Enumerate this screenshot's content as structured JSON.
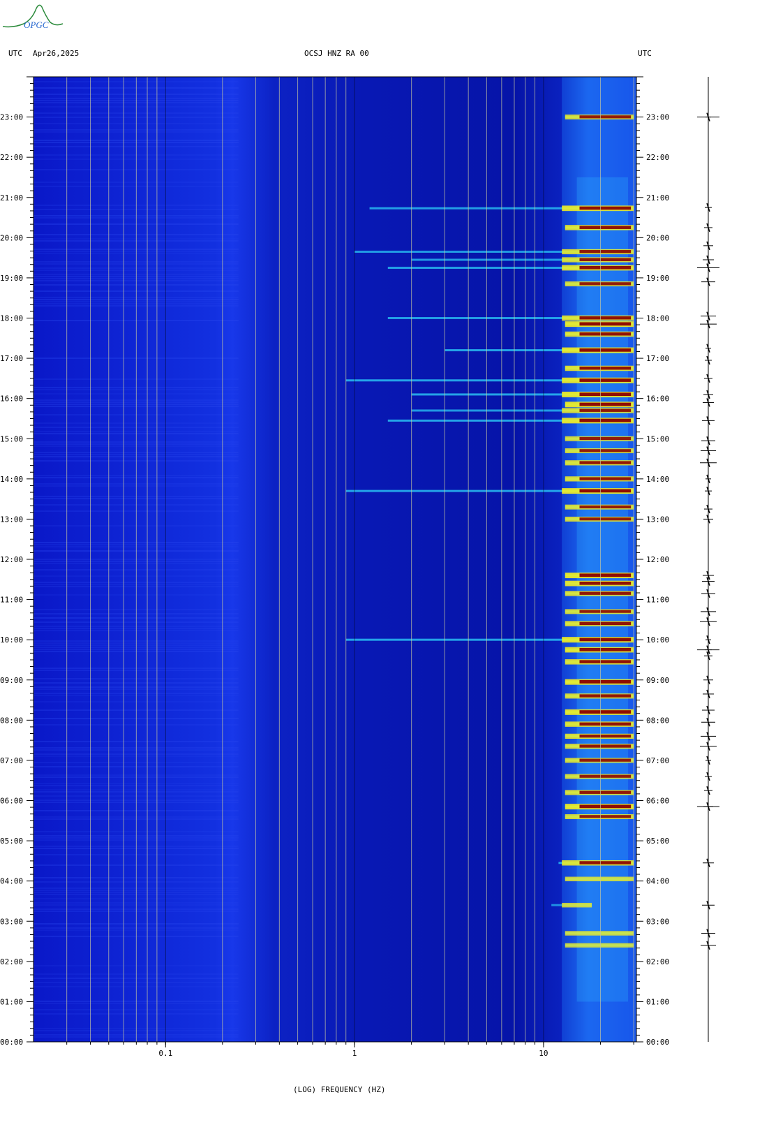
{
  "logo": {
    "text": "OPGC"
  },
  "header": {
    "left_tz": "UTC",
    "date": "Apr26,2025",
    "station": "OCSJ HNZ RA 00",
    "right_tz": "UTC"
  },
  "colors": {
    "background_blue": "#0a14b8",
    "deep_blue": "#0012a0",
    "cyan": "#30e0ff",
    "yellow": "#f4f020",
    "dark_red": "#8a0000",
    "gridline": "#c8c8a0"
  },
  "chart_data": {
    "type": "heatmap",
    "title": "OCSJ HNZ RA 00",
    "xlabel": "(LOG) FREQUENCY (HZ)",
    "ylabel": "UTC",
    "x_scale": "log",
    "xlim": [
      0.02,
      31
    ],
    "x_ticks": [
      {
        "value": 0.1,
        "label": "0.1"
      },
      {
        "value": 1,
        "label": "1"
      },
      {
        "value": 10,
        "label": "10"
      }
    ],
    "x_gridlines": [
      0.03,
      0.04,
      0.05,
      0.06,
      0.07,
      0.08,
      0.09,
      0.1,
      0.2,
      0.3,
      0.4,
      0.5,
      0.6,
      0.7,
      0.8,
      0.9,
      1,
      2,
      3,
      4,
      5,
      6,
      7,
      8,
      9,
      10,
      20,
      30
    ],
    "ylim_hours": [
      0,
      24
    ],
    "y_ticks": [
      {
        "value": 23,
        "label": "23:00"
      },
      {
        "value": 22,
        "label": "22:00"
      },
      {
        "value": 21,
        "label": "21:00"
      },
      {
        "value": 20,
        "label": "20:00"
      },
      {
        "value": 19,
        "label": "19:00"
      },
      {
        "value": 18,
        "label": "18:00"
      },
      {
        "value": 17,
        "label": "17:00"
      },
      {
        "value": 16,
        "label": "16:00"
      },
      {
        "value": 15,
        "label": "15:00"
      },
      {
        "value": 14,
        "label": "14:00"
      },
      {
        "value": 13,
        "label": "13:00"
      },
      {
        "value": 12,
        "label": "12:00"
      },
      {
        "value": 11,
        "label": "11:00"
      },
      {
        "value": 10,
        "label": "10:00"
      },
      {
        "value": 9,
        "label": "09:00"
      },
      {
        "value": 8,
        "label": "08:00"
      },
      {
        "value": 7,
        "label": "07:00"
      },
      {
        "value": 6,
        "label": "06:00"
      },
      {
        "value": 5,
        "label": "05:00"
      },
      {
        "value": 4,
        "label": "04:00"
      },
      {
        "value": 3,
        "label": "03:00"
      },
      {
        "value": 2,
        "label": "02:00"
      },
      {
        "value": 1,
        "label": "01:00"
      },
      {
        "value": 0,
        "label": "00:00"
      }
    ],
    "grid": true,
    "events": [
      {
        "time_h": 23.0,
        "f_min": 13,
        "f_max": 30,
        "intensity": 0.8
      },
      {
        "time_h": 20.73,
        "f_min": 1.2,
        "f_max": 30,
        "intensity": 0.95
      },
      {
        "time_h": 20.25,
        "f_min": 13,
        "f_max": 30,
        "intensity": 0.9
      },
      {
        "time_h": 19.65,
        "f_min": 1.0,
        "f_max": 30,
        "intensity": 0.85
      },
      {
        "time_h": 19.45,
        "f_min": 2.0,
        "f_max": 30,
        "intensity": 0.85
      },
      {
        "time_h": 19.25,
        "f_min": 1.5,
        "f_max": 30,
        "intensity": 0.95
      },
      {
        "time_h": 18.85,
        "f_min": 13,
        "f_max": 30,
        "intensity": 0.8
      },
      {
        "time_h": 18.0,
        "f_min": 1.5,
        "f_max": 30,
        "intensity": 0.9
      },
      {
        "time_h": 17.85,
        "f_min": 13,
        "f_max": 30,
        "intensity": 1.0
      },
      {
        "time_h": 17.6,
        "f_min": 13,
        "f_max": 30,
        "intensity": 0.9
      },
      {
        "time_h": 17.2,
        "f_min": 3.0,
        "f_max": 30,
        "intensity": 1.0
      },
      {
        "time_h": 16.75,
        "f_min": 13,
        "f_max": 30,
        "intensity": 0.9
      },
      {
        "time_h": 16.45,
        "f_min": 0.9,
        "f_max": 30,
        "intensity": 1.0
      },
      {
        "time_h": 16.1,
        "f_min": 2.0,
        "f_max": 30,
        "intensity": 1.0
      },
      {
        "time_h": 15.85,
        "f_min": 13,
        "f_max": 30,
        "intensity": 1.0
      },
      {
        "time_h": 15.7,
        "f_min": 2.0,
        "f_max": 30,
        "intensity": 0.85
      },
      {
        "time_h": 15.45,
        "f_min": 1.5,
        "f_max": 30,
        "intensity": 1.0
      },
      {
        "time_h": 15.0,
        "f_min": 13,
        "f_max": 30,
        "intensity": 0.8
      },
      {
        "time_h": 14.7,
        "f_min": 13,
        "f_max": 30,
        "intensity": 0.8
      },
      {
        "time_h": 14.4,
        "f_min": 13,
        "f_max": 30,
        "intensity": 0.85
      },
      {
        "time_h": 14.0,
        "f_min": 13,
        "f_max": 30,
        "intensity": 0.85
      },
      {
        "time_h": 13.7,
        "f_min": 0.9,
        "f_max": 30,
        "intensity": 1.0
      },
      {
        "time_h": 13.3,
        "f_min": 13,
        "f_max": 30,
        "intensity": 0.8
      },
      {
        "time_h": 13.0,
        "f_min": 13,
        "f_max": 30,
        "intensity": 0.8
      },
      {
        "time_h": 11.6,
        "f_min": 13,
        "f_max": 30,
        "intensity": 1.0
      },
      {
        "time_h": 11.4,
        "f_min": 13,
        "f_max": 30,
        "intensity": 0.95
      },
      {
        "time_h": 11.15,
        "f_min": 13,
        "f_max": 30,
        "intensity": 0.85
      },
      {
        "time_h": 10.7,
        "f_min": 13,
        "f_max": 30,
        "intensity": 0.8
      },
      {
        "time_h": 10.4,
        "f_min": 13,
        "f_max": 30,
        "intensity": 0.9
      },
      {
        "time_h": 10.0,
        "f_min": 0.9,
        "f_max": 30,
        "intensity": 1.0
      },
      {
        "time_h": 9.75,
        "f_min": 13,
        "f_max": 30,
        "intensity": 0.95
      },
      {
        "time_h": 9.45,
        "f_min": 13,
        "f_max": 30,
        "intensity": 0.9
      },
      {
        "time_h": 8.95,
        "f_min": 13,
        "f_max": 30,
        "intensity": 1.0
      },
      {
        "time_h": 8.6,
        "f_min": 13,
        "f_max": 30,
        "intensity": 0.85
      },
      {
        "time_h": 8.2,
        "f_min": 13,
        "f_max": 30,
        "intensity": 1.0
      },
      {
        "time_h": 7.9,
        "f_min": 13,
        "f_max": 30,
        "intensity": 0.9
      },
      {
        "time_h": 7.6,
        "f_min": 13,
        "f_max": 30,
        "intensity": 0.85
      },
      {
        "time_h": 7.35,
        "f_min": 13,
        "f_max": 30,
        "intensity": 0.85
      },
      {
        "time_h": 7.0,
        "f_min": 13,
        "f_max": 30,
        "intensity": 0.8
      },
      {
        "time_h": 6.6,
        "f_min": 13,
        "f_max": 30,
        "intensity": 0.8
      },
      {
        "time_h": 6.2,
        "f_min": 13,
        "f_max": 30,
        "intensity": 0.85
      },
      {
        "time_h": 5.85,
        "f_min": 13,
        "f_max": 30,
        "intensity": 1.0
      },
      {
        "time_h": 5.6,
        "f_min": 13,
        "f_max": 30,
        "intensity": 0.8
      },
      {
        "time_h": 4.45,
        "f_min": 12,
        "f_max": 30,
        "intensity": 0.9
      },
      {
        "time_h": 4.05,
        "f_min": 13,
        "f_max": 30,
        "intensity": 0.7
      },
      {
        "time_h": 3.4,
        "f_min": 11,
        "f_max": 18,
        "intensity": 0.7
      },
      {
        "time_h": 2.7,
        "f_min": 13,
        "f_max": 30,
        "intensity": 0.7
      },
      {
        "time_h": 2.4,
        "f_min": 13,
        "f_max": 30,
        "intensity": 0.65
      }
    ],
    "seismogram": {
      "label": "trace",
      "bursts_h": [
        23.0,
        20.75,
        20.25,
        19.8,
        19.45,
        19.25,
        18.9,
        18.05,
        17.85,
        17.25,
        16.95,
        16.5,
        16.1,
        15.9,
        15.45,
        14.95,
        14.7,
        14.4,
        14.0,
        13.7,
        13.25,
        13.0,
        11.6,
        11.45,
        11.15,
        10.7,
        10.45,
        10.0,
        9.75,
        9.6,
        9.0,
        8.65,
        8.25,
        7.95,
        7.6,
        7.35,
        7.0,
        6.6,
        6.25,
        5.85,
        4.45,
        3.4,
        2.7,
        2.4
      ]
    }
  }
}
